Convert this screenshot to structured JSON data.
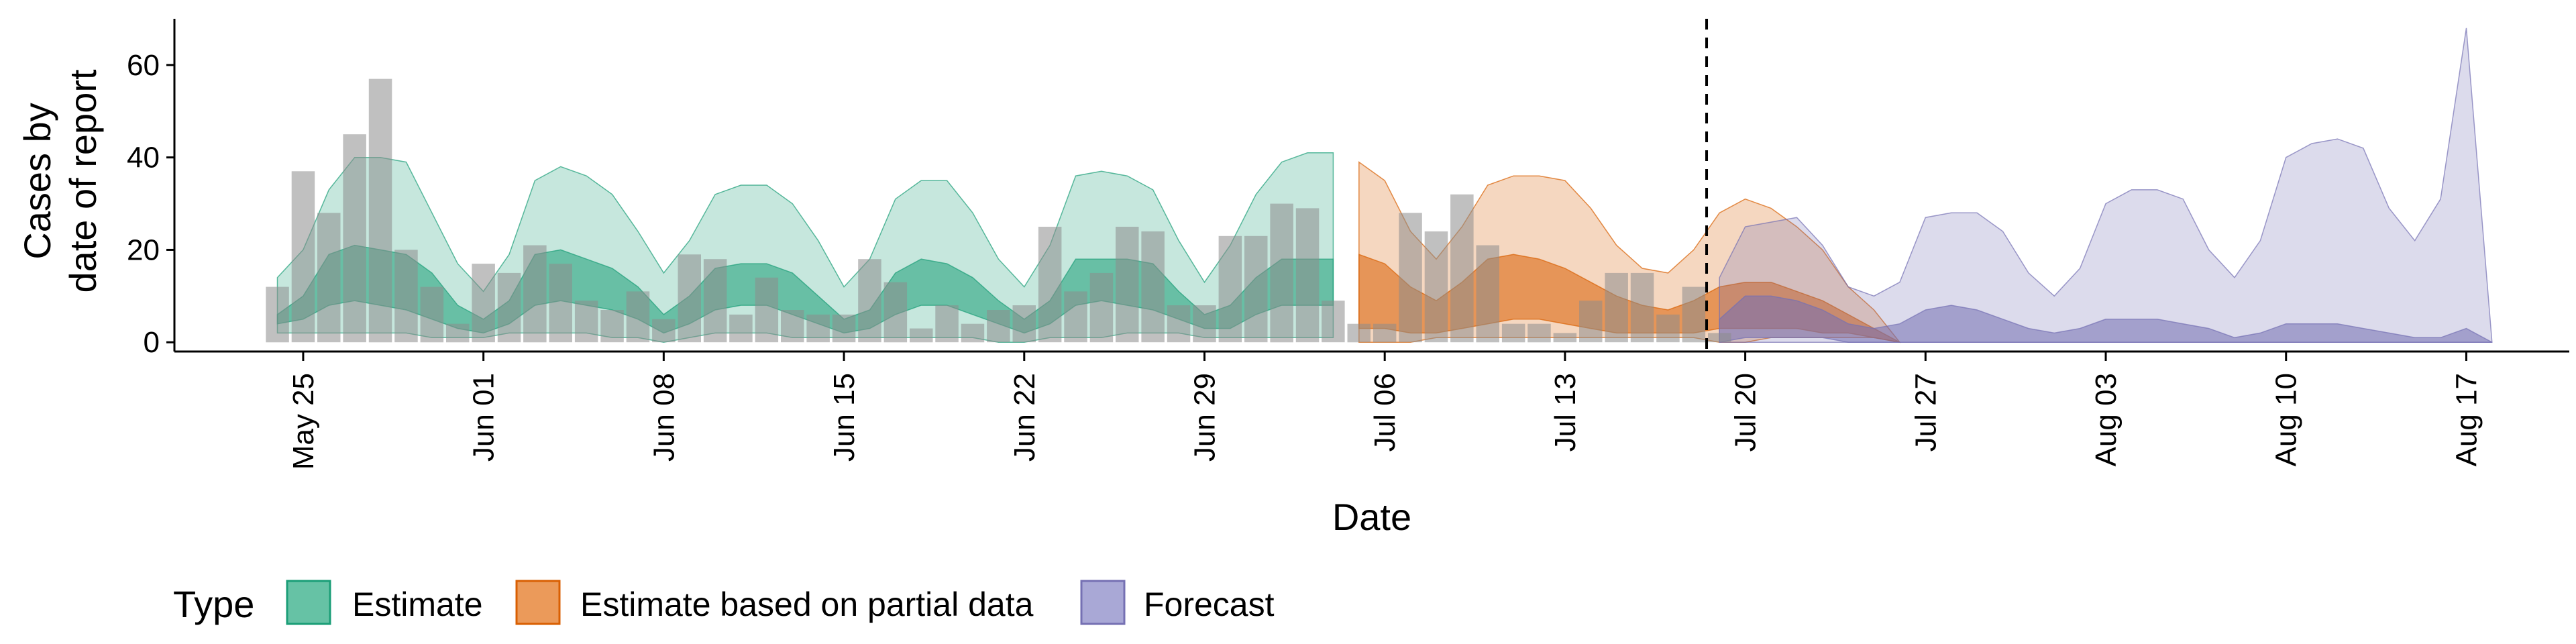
{
  "chart_data": {
    "type": "area",
    "ylabel_lines": [
      "Cases by",
      "date of report"
    ],
    "xlabel": "Date",
    "ylim": [
      -2,
      70
    ],
    "x_range": [
      "2020-05-20",
      "2020-08-21"
    ],
    "y_ticks": [
      0,
      20,
      40,
      60
    ],
    "x_ticks": [
      {
        "date": "2020-05-25",
        "label": "May 25"
      },
      {
        "date": "2020-06-01",
        "label": "Jun 01"
      },
      {
        "date": "2020-06-08",
        "label": "Jun 08"
      },
      {
        "date": "2020-06-15",
        "label": "Jun 15"
      },
      {
        "date": "2020-06-22",
        "label": "Jun 22"
      },
      {
        "date": "2020-06-29",
        "label": "Jun 29"
      },
      {
        "date": "2020-07-06",
        "label": "Jul 06"
      },
      {
        "date": "2020-07-13",
        "label": "Jul 13"
      },
      {
        "date": "2020-07-20",
        "label": "Jul 20"
      },
      {
        "date": "2020-07-27",
        "label": "Jul 27"
      },
      {
        "date": "2020-08-03",
        "label": "Aug 03"
      },
      {
        "date": "2020-08-10",
        "label": "Aug 10"
      },
      {
        "date": "2020-08-17",
        "label": "Aug 17"
      }
    ],
    "forecast_start": "2020-07-19",
    "reported_cases": {
      "start": "2020-05-24",
      "values": [
        12,
        37,
        28,
        45,
        57,
        20,
        12,
        4,
        17,
        15,
        21,
        17,
        9,
        7,
        11,
        5,
        19,
        18,
        6,
        14,
        7,
        6,
        6,
        18,
        13,
        3,
        8,
        4,
        7,
        8,
        25,
        11,
        15,
        25,
        24,
        8,
        8,
        23,
        23,
        30,
        29,
        9,
        4,
        4,
        28,
        24,
        32,
        21,
        4,
        4,
        2,
        9,
        15,
        15,
        6,
        12,
        2
      ]
    },
    "legend": {
      "title": "Type",
      "position": "bottom",
      "items": [
        {
          "label": "Estimate",
          "fill": "#66c2a5",
          "stroke": "#1b9e77"
        },
        {
          "label": "Estimate based on partial data",
          "fill": "#eb9a5a",
          "stroke": "#d95f02"
        },
        {
          "label": "Forecast",
          "fill": "#a9a8d6",
          "stroke": "#7570b3"
        }
      ]
    },
    "series": [
      {
        "name": "Estimate",
        "start": "2020-05-24",
        "color": "#1b9e77",
        "lo90": [
          2,
          2,
          2,
          2,
          2,
          2,
          1,
          1,
          1,
          2,
          2,
          2,
          2,
          1,
          1,
          0,
          1,
          2,
          2,
          2,
          1,
          1,
          1,
          1,
          1,
          1,
          1,
          1,
          0,
          0,
          1,
          1,
          1,
          2,
          2,
          2,
          1,
          1,
          1,
          1,
          1,
          1
        ],
        "hi90": [
          14,
          20,
          33,
          40,
          40,
          39,
          28,
          17,
          11,
          19,
          35,
          38,
          36,
          32,
          24,
          15,
          22,
          32,
          34,
          34,
          30,
          22,
          12,
          18,
          31,
          35,
          35,
          28,
          18,
          12,
          21,
          36,
          37,
          36,
          33,
          22,
          13,
          21,
          32,
          39,
          41,
          41
        ],
        "lo50": [
          4,
          5,
          8,
          9,
          8,
          7,
          5,
          3,
          2,
          4,
          8,
          9,
          8,
          7,
          5,
          2,
          4,
          7,
          8,
          8,
          6,
          4,
          2,
          3,
          6,
          8,
          8,
          6,
          4,
          2,
          4,
          8,
          9,
          8,
          7,
          5,
          3,
          3,
          6,
          8,
          8,
          8
        ],
        "hi50": [
          6,
          10,
          19,
          21,
          20,
          19,
          15,
          8,
          5,
          9,
          19,
          20,
          18,
          16,
          12,
          6,
          10,
          16,
          17,
          17,
          15,
          10,
          5,
          7,
          15,
          18,
          17,
          14,
          9,
          5,
          9,
          18,
          18,
          18,
          17,
          11,
          6,
          8,
          14,
          18,
          18,
          18
        ]
      },
      {
        "name": "Estimate based on partial data",
        "start": "2020-07-05",
        "color": "#d95f02",
        "lo90": [
          0,
          0,
          0,
          1,
          1,
          1,
          1,
          1,
          1,
          1,
          1,
          1,
          1,
          1,
          0,
          0,
          1,
          1,
          1,
          1,
          1,
          0
        ],
        "hi90": [
          39,
          35,
          24,
          18,
          25,
          34,
          36,
          36,
          35,
          29,
          21,
          16,
          15,
          20,
          28,
          31,
          29,
          25,
          20,
          12,
          7,
          0
        ],
        "lo50": [
          3,
          3,
          2,
          2,
          3,
          4,
          5,
          5,
          4,
          3,
          2,
          2,
          2,
          2,
          3,
          3,
          3,
          3,
          2,
          2,
          1,
          0
        ],
        "hi50": [
          19,
          17,
          12,
          9,
          13,
          18,
          19,
          18,
          16,
          13,
          10,
          8,
          7,
          9,
          12,
          13,
          13,
          11,
          9,
          6,
          3,
          0
        ]
      },
      {
        "name": "Forecast",
        "start": "2020-07-19",
        "color": "#7570b3",
        "lo90": [
          0,
          0,
          0,
          0,
          0,
          0,
          0,
          0,
          0,
          0,
          0,
          0,
          0,
          0,
          0,
          0,
          0,
          0,
          0,
          0,
          0,
          0,
          0,
          0,
          0,
          0,
          0,
          0,
          0,
          0,
          0
        ],
        "hi90": [
          14,
          25,
          26,
          27,
          21,
          12,
          10,
          13,
          27,
          28,
          28,
          24,
          15,
          10,
          16,
          30,
          33,
          33,
          31,
          20,
          14,
          22,
          40,
          43,
          44,
          42,
          29,
          22,
          31,
          68,
          0
        ],
        "lo50": [
          0,
          1,
          1,
          1,
          1,
          0,
          0,
          0,
          0,
          0,
          0,
          0,
          0,
          0,
          0,
          0,
          0,
          0,
          0,
          0,
          0,
          0,
          0,
          0,
          0,
          0,
          0,
          0,
          0,
          0,
          0
        ],
        "hi50": [
          5,
          10,
          10,
          9,
          7,
          4,
          3,
          4,
          7,
          8,
          7,
          5,
          3,
          2,
          3,
          5,
          5,
          5,
          4,
          3,
          1,
          2,
          4,
          4,
          4,
          3,
          2,
          1,
          1,
          3,
          0
        ]
      }
    ]
  }
}
